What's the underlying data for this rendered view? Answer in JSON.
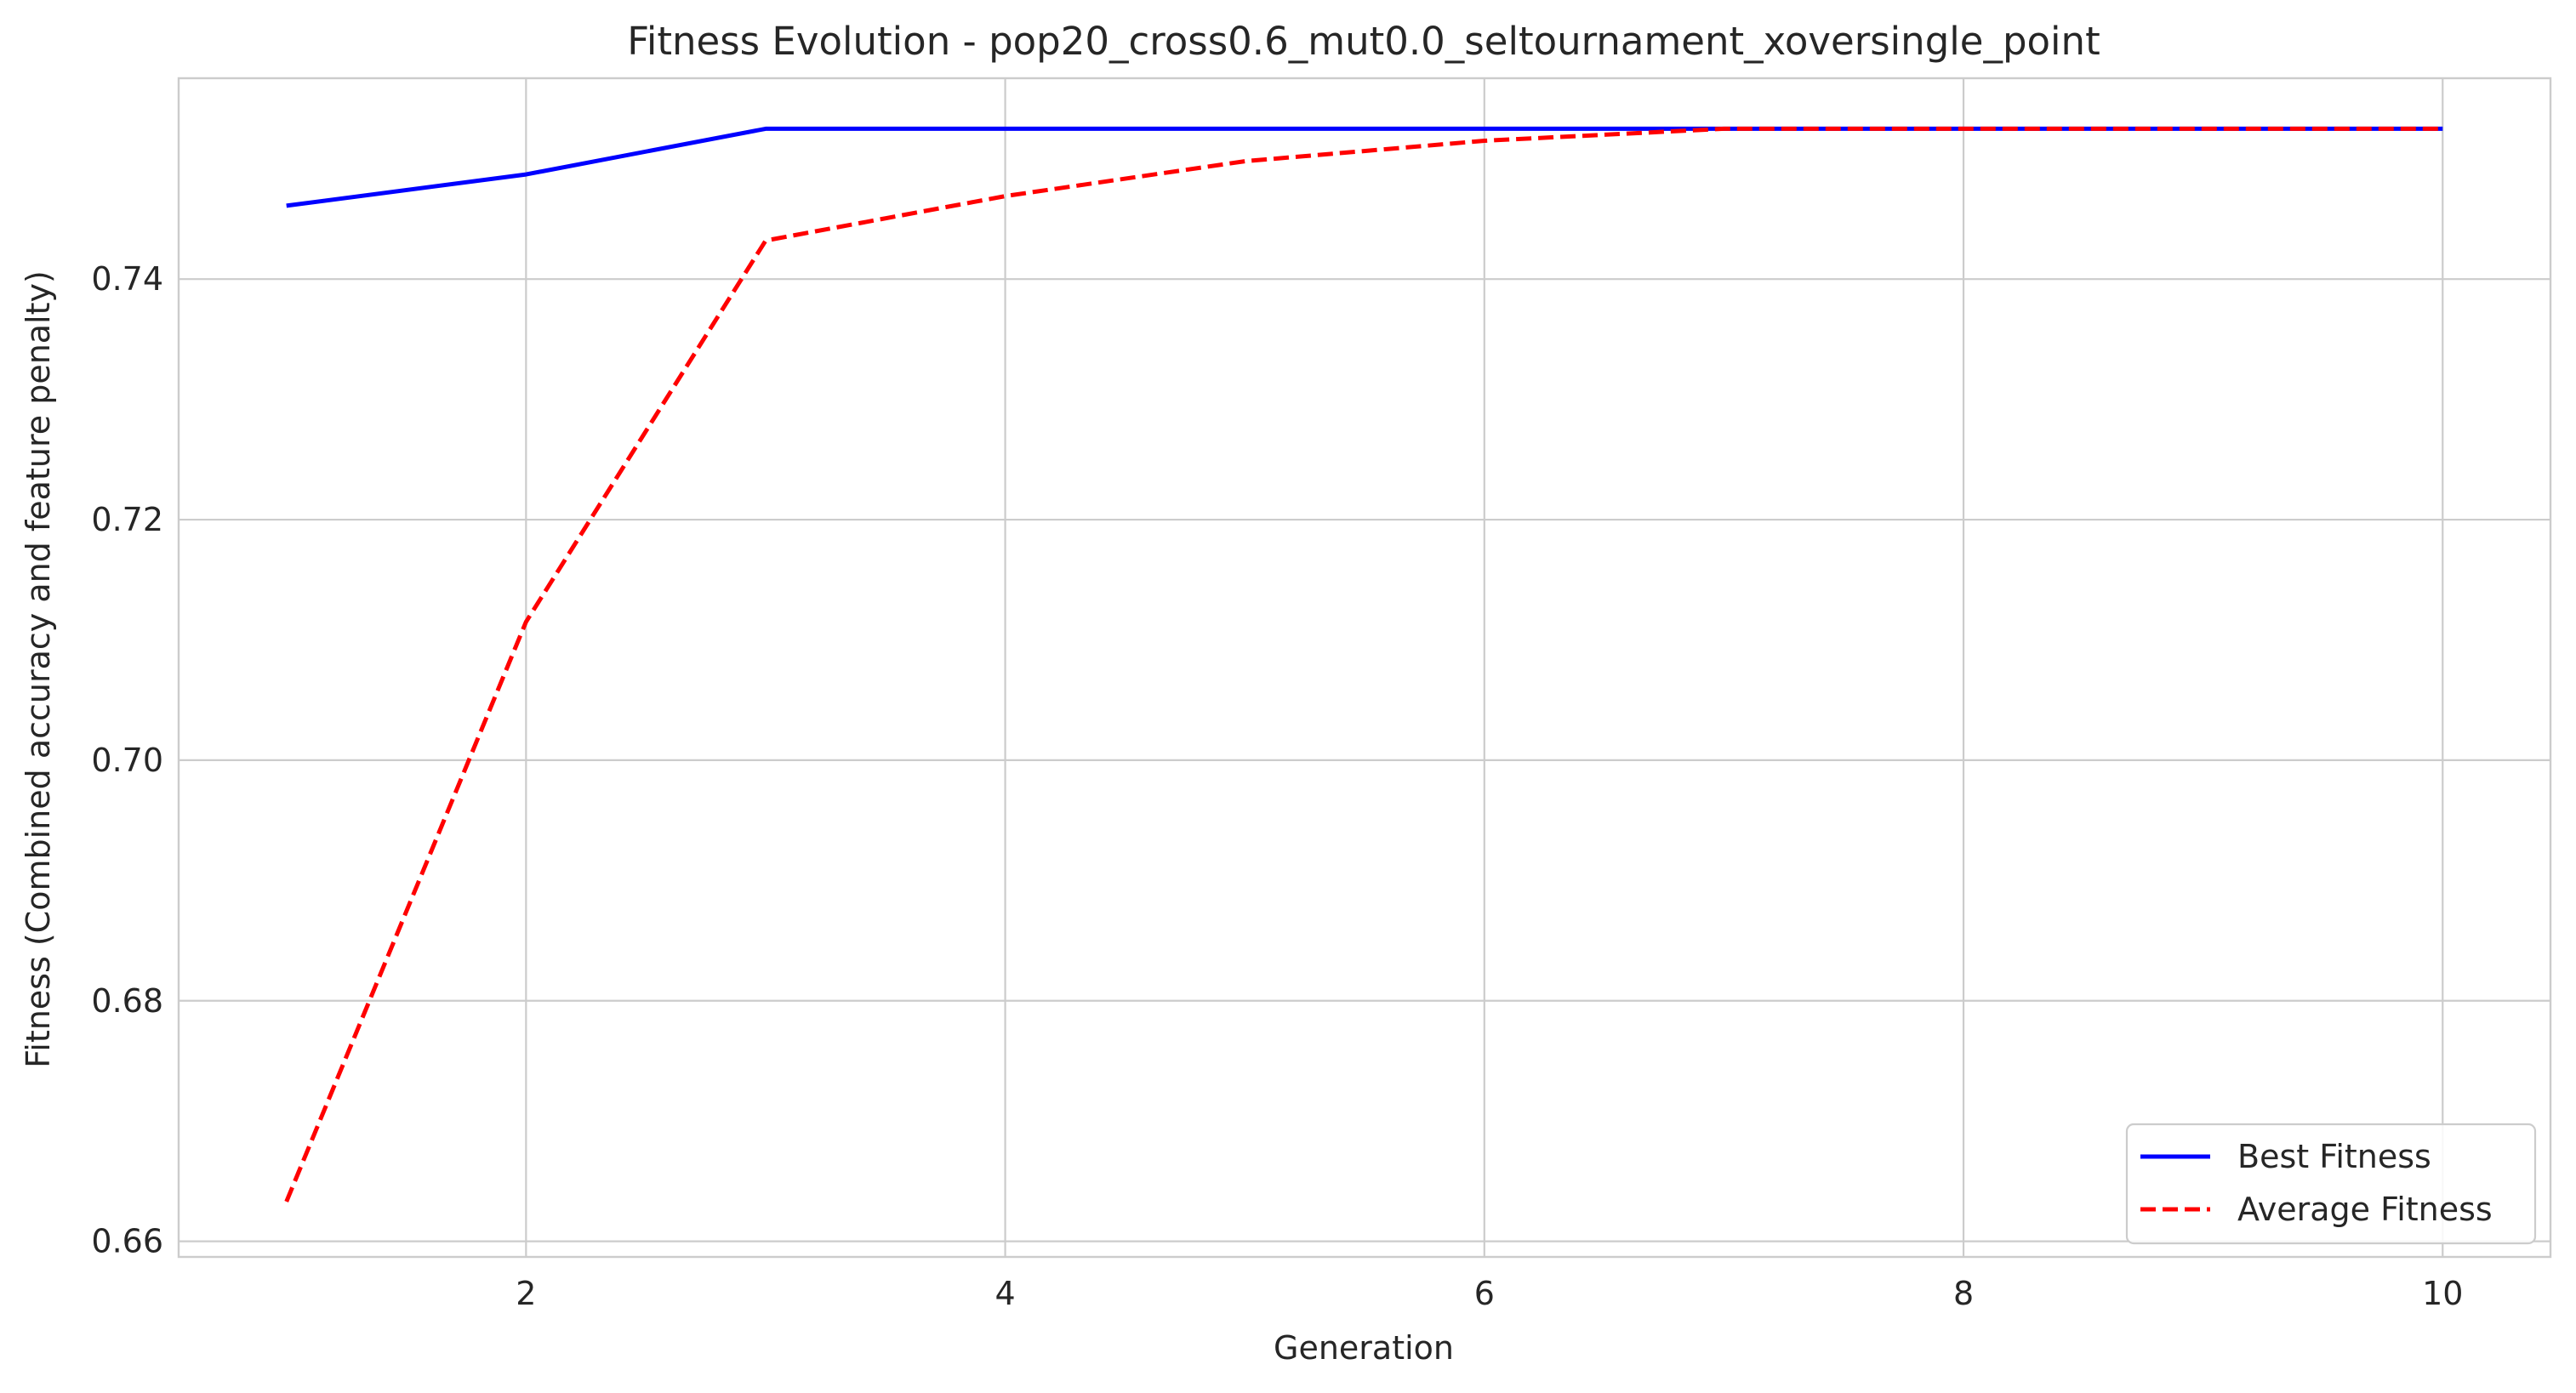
{
  "chart_data": {
    "type": "line",
    "title": "Fitness Evolution - pop20_cross0.6_mut0.0_seltournament_xoversingle_point",
    "xlabel": "Generation",
    "ylabel": "Fitness (Combined accuracy and feature penalty)",
    "xlim": [
      0.55,
      10.45
    ],
    "ylim": [
      0.6587,
      0.7567
    ],
    "xticks": [
      2,
      4,
      6,
      8,
      10
    ],
    "xtick_labels": [
      "2",
      "4",
      "6",
      "8",
      "10"
    ],
    "yticks": [
      0.66,
      0.68,
      0.7,
      0.72,
      0.74
    ],
    "ytick_labels": [
      "0.66",
      "0.68",
      "0.70",
      "0.72",
      "0.74"
    ],
    "grid": true,
    "legend_position": "lower-right",
    "x": [
      1,
      2,
      3,
      4,
      5,
      6,
      7,
      8,
      9,
      10
    ],
    "series": [
      {
        "name": "Best Fitness",
        "color": "#0000ff",
        "style": "solid",
        "values": [
          0.7461,
          0.7487,
          0.7525,
          0.7525,
          0.7525,
          0.7525,
          0.7525,
          0.7525,
          0.7525,
          0.7525
        ]
      },
      {
        "name": "Average Fitness",
        "color": "#ff0000",
        "style": "dashed",
        "values": [
          0.6633,
          0.7115,
          0.7432,
          0.7469,
          0.7498,
          0.7515,
          0.7525,
          0.7525,
          0.7525,
          0.7525
        ]
      }
    ]
  }
}
